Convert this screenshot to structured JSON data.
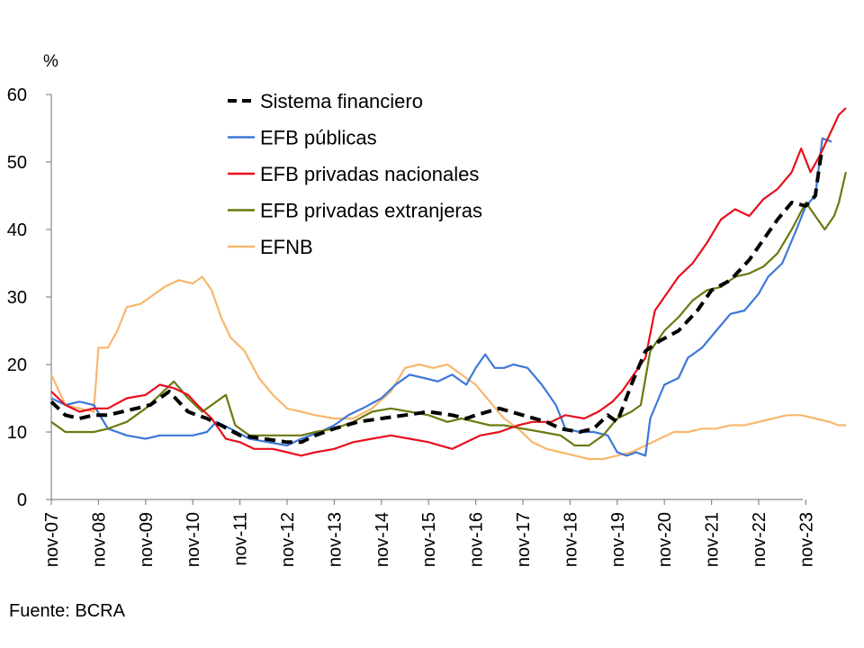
{
  "chart_data": {
    "type": "line",
    "ylabel": "%",
    "ylim": [
      0,
      60
    ],
    "yticks": [
      0,
      10,
      20,
      30,
      40,
      50,
      60
    ],
    "x_tick_labels": [
      "nov-07",
      "nov-08",
      "nov-09",
      "nov-10",
      "nov-11",
      "nov-12",
      "nov-13",
      "nov-14",
      "nov-15",
      "nov-16",
      "nov-17",
      "nov-18",
      "nov-19",
      "nov-20",
      "nov-21",
      "nov-22",
      "nov-23"
    ],
    "x_domain": [
      0,
      16.3
    ],
    "legend_position": "top-center",
    "source": "Fuente: BCRA",
    "series": [
      {
        "name": "Sistema financiero",
        "color": "#000000",
        "dashed": true,
        "points": [
          [
            0,
            14.5
          ],
          [
            0.3,
            12.5
          ],
          [
            0.6,
            12.0
          ],
          [
            0.9,
            12.5
          ],
          [
            1.2,
            12.5
          ],
          [
            1.5,
            13.0
          ],
          [
            1.8,
            13.5
          ],
          [
            2.1,
            14.0
          ],
          [
            2.3,
            15.0
          ],
          [
            2.5,
            16.0
          ],
          [
            2.7,
            14.5
          ],
          [
            2.9,
            13.0
          ],
          [
            3.1,
            12.5
          ],
          [
            3.3,
            12.0
          ],
          [
            3.6,
            11.0
          ],
          [
            4.0,
            9.5
          ],
          [
            4.5,
            9.0
          ],
          [
            5.0,
            8.5
          ],
          [
            5.3,
            8.5
          ],
          [
            5.6,
            9.5
          ],
          [
            6.0,
            10.5
          ],
          [
            6.5,
            11.5
          ],
          [
            7.0,
            12.0
          ],
          [
            7.5,
            12.5
          ],
          [
            8.0,
            13.0
          ],
          [
            8.5,
            12.5
          ],
          [
            8.8,
            12.0
          ],
          [
            9.0,
            12.5
          ],
          [
            9.5,
            13.5
          ],
          [
            10.0,
            12.5
          ],
          [
            10.5,
            11.5
          ],
          [
            10.8,
            10.5
          ],
          [
            11.2,
            10.0
          ],
          [
            11.5,
            10.5
          ],
          [
            11.8,
            12.5
          ],
          [
            12.0,
            11.5
          ],
          [
            12.3,
            17.0
          ],
          [
            12.6,
            22.0
          ],
          [
            12.9,
            23.5
          ],
          [
            13.3,
            25.0
          ],
          [
            13.7,
            28.0
          ],
          [
            14.0,
            31.0
          ],
          [
            14.4,
            32.5
          ],
          [
            14.8,
            35.5
          ],
          [
            15.1,
            38.5
          ],
          [
            15.4,
            41.5
          ],
          [
            15.7,
            44.0
          ],
          [
            16.0,
            43.5
          ],
          [
            16.2,
            45.0
          ],
          [
            16.3,
            50.0
          ],
          [
            16.35,
            52.0
          ]
        ]
      },
      {
        "name": "EFB públicas",
        "color": "#3C78D8",
        "dashed": false,
        "points": [
          [
            0,
            15.0
          ],
          [
            0.3,
            14.0
          ],
          [
            0.6,
            14.5
          ],
          [
            0.9,
            14.0
          ],
          [
            1.2,
            10.5
          ],
          [
            1.6,
            9.5
          ],
          [
            2.0,
            9.0
          ],
          [
            2.3,
            9.5
          ],
          [
            2.6,
            9.5
          ],
          [
            3.0,
            9.5
          ],
          [
            3.3,
            10.0
          ],
          [
            3.5,
            11.5
          ],
          [
            3.8,
            10.5
          ],
          [
            4.2,
            9.0
          ],
          [
            4.6,
            8.5
          ],
          [
            5.0,
            8.0
          ],
          [
            5.3,
            9.0
          ],
          [
            5.7,
            10.0
          ],
          [
            6.0,
            11.0
          ],
          [
            6.3,
            12.5
          ],
          [
            6.6,
            13.5
          ],
          [
            7.0,
            15.0
          ],
          [
            7.3,
            17.0
          ],
          [
            7.6,
            18.5
          ],
          [
            7.9,
            18.0
          ],
          [
            8.2,
            17.5
          ],
          [
            8.5,
            18.5
          ],
          [
            8.8,
            17.0
          ],
          [
            9.0,
            19.5
          ],
          [
            9.2,
            21.5
          ],
          [
            9.4,
            19.5
          ],
          [
            9.6,
            19.5
          ],
          [
            9.8,
            20.0
          ],
          [
            10.1,
            19.5
          ],
          [
            10.4,
            17.0
          ],
          [
            10.7,
            14.0
          ],
          [
            10.9,
            10.5
          ],
          [
            11.2,
            10.0
          ],
          [
            11.5,
            10.0
          ],
          [
            11.8,
            9.5
          ],
          [
            12.0,
            7.0
          ],
          [
            12.2,
            6.5
          ],
          [
            12.4,
            7.0
          ],
          [
            12.6,
            6.5
          ],
          [
            12.7,
            12.0
          ],
          [
            13.0,
            17.0
          ],
          [
            13.3,
            18.0
          ],
          [
            13.5,
            21.0
          ],
          [
            13.8,
            22.5
          ],
          [
            14.1,
            25.0
          ],
          [
            14.4,
            27.5
          ],
          [
            14.7,
            28.0
          ],
          [
            15.0,
            30.5
          ],
          [
            15.2,
            33.0
          ],
          [
            15.5,
            35.0
          ],
          [
            15.8,
            40.0
          ],
          [
            16.0,
            43.5
          ],
          [
            16.2,
            45.0
          ],
          [
            16.35,
            53.5
          ],
          [
            16.55,
            53.0
          ]
        ]
      },
      {
        "name": "EFB privadas nacionales",
        "color": "#E8101E",
        "dashed": false,
        "points": [
          [
            0,
            16.0
          ],
          [
            0.3,
            14.0
          ],
          [
            0.6,
            13.0
          ],
          [
            0.9,
            13.5
          ],
          [
            1.2,
            13.5
          ],
          [
            1.6,
            15.0
          ],
          [
            2.0,
            15.5
          ],
          [
            2.3,
            17.0
          ],
          [
            2.6,
            16.5
          ],
          [
            2.9,
            15.5
          ],
          [
            3.1,
            14.0
          ],
          [
            3.4,
            12.0
          ],
          [
            3.7,
            9.0
          ],
          [
            4.0,
            8.5
          ],
          [
            4.3,
            7.5
          ],
          [
            4.7,
            7.5
          ],
          [
            5.0,
            7.0
          ],
          [
            5.3,
            6.5
          ],
          [
            5.6,
            7.0
          ],
          [
            6.0,
            7.5
          ],
          [
            6.4,
            8.5
          ],
          [
            6.8,
            9.0
          ],
          [
            7.2,
            9.5
          ],
          [
            7.6,
            9.0
          ],
          [
            8.0,
            8.5
          ],
          [
            8.5,
            7.5
          ],
          [
            8.8,
            8.5
          ],
          [
            9.1,
            9.5
          ],
          [
            9.5,
            10.0
          ],
          [
            9.9,
            11.0
          ],
          [
            10.2,
            11.5
          ],
          [
            10.6,
            11.5
          ],
          [
            10.9,
            12.5
          ],
          [
            11.3,
            12.0
          ],
          [
            11.6,
            13.0
          ],
          [
            11.9,
            14.5
          ],
          [
            12.1,
            16.0
          ],
          [
            12.4,
            19.0
          ],
          [
            12.6,
            21.0
          ],
          [
            12.8,
            28.0
          ],
          [
            13.0,
            30.0
          ],
          [
            13.3,
            33.0
          ],
          [
            13.6,
            35.0
          ],
          [
            13.9,
            38.0
          ],
          [
            14.2,
            41.5
          ],
          [
            14.5,
            43.0
          ],
          [
            14.8,
            42.0
          ],
          [
            15.1,
            44.5
          ],
          [
            15.4,
            46.0
          ],
          [
            15.7,
            48.5
          ],
          [
            15.9,
            52.0
          ],
          [
            16.1,
            48.5
          ],
          [
            16.3,
            51.0
          ],
          [
            16.5,
            54.0
          ],
          [
            16.7,
            57.0
          ],
          [
            16.85,
            58.0
          ]
        ]
      },
      {
        "name": "EFB privadas extranjeras",
        "color": "#6B7A0F",
        "dashed": false,
        "points": [
          [
            0,
            11.5
          ],
          [
            0.3,
            10.0
          ],
          [
            0.6,
            10.0
          ],
          [
            0.9,
            10.0
          ],
          [
            1.2,
            10.5
          ],
          [
            1.6,
            11.5
          ],
          [
            2.0,
            13.5
          ],
          [
            2.3,
            15.5
          ],
          [
            2.6,
            17.5
          ],
          [
            2.9,
            15.0
          ],
          [
            3.2,
            13.0
          ],
          [
            3.5,
            14.5
          ],
          [
            3.7,
            15.5
          ],
          [
            3.9,
            11.0
          ],
          [
            4.2,
            9.5
          ],
          [
            4.6,
            9.5
          ],
          [
            5.0,
            9.5
          ],
          [
            5.3,
            9.5
          ],
          [
            5.6,
            10.0
          ],
          [
            6.0,
            10.5
          ],
          [
            6.4,
            11.5
          ],
          [
            6.8,
            13.0
          ],
          [
            7.2,
            13.5
          ],
          [
            7.6,
            13.0
          ],
          [
            8.0,
            12.5
          ],
          [
            8.4,
            11.5
          ],
          [
            8.7,
            12.0
          ],
          [
            9.0,
            11.5
          ],
          [
            9.3,
            11.0
          ],
          [
            9.6,
            11.0
          ],
          [
            10.0,
            10.5
          ],
          [
            10.4,
            10.0
          ],
          [
            10.8,
            9.5
          ],
          [
            11.1,
            8.0
          ],
          [
            11.4,
            8.0
          ],
          [
            11.7,
            9.5
          ],
          [
            12.0,
            12.0
          ],
          [
            12.3,
            13.0
          ],
          [
            12.5,
            14.0
          ],
          [
            12.7,
            22.0
          ],
          [
            13.0,
            25.0
          ],
          [
            13.3,
            27.0
          ],
          [
            13.6,
            29.5
          ],
          [
            13.9,
            31.0
          ],
          [
            14.2,
            31.5
          ],
          [
            14.5,
            33.0
          ],
          [
            14.8,
            33.5
          ],
          [
            15.1,
            34.5
          ],
          [
            15.4,
            36.5
          ],
          [
            15.7,
            40.0
          ],
          [
            16.0,
            44.0
          ],
          [
            16.2,
            42.0
          ],
          [
            16.4,
            40.0
          ],
          [
            16.6,
            42.0
          ],
          [
            16.7,
            44.0
          ],
          [
            16.85,
            48.5
          ]
        ]
      },
      {
        "name": "EFNB",
        "color": "#F8B76E",
        "dashed": false,
        "points": [
          [
            0,
            18.5
          ],
          [
            0.3,
            14.0
          ],
          [
            0.6,
            13.5
          ],
          [
            0.9,
            13.0
          ],
          [
            1.0,
            22.5
          ],
          [
            1.2,
            22.5
          ],
          [
            1.4,
            25.0
          ],
          [
            1.6,
            28.5
          ],
          [
            1.9,
            29.0
          ],
          [
            2.1,
            30.0
          ],
          [
            2.4,
            31.5
          ],
          [
            2.7,
            32.5
          ],
          [
            3.0,
            32.0
          ],
          [
            3.2,
            33.0
          ],
          [
            3.4,
            31.0
          ],
          [
            3.6,
            27.0
          ],
          [
            3.8,
            24.0
          ],
          [
            4.1,
            22.0
          ],
          [
            4.4,
            18.0
          ],
          [
            4.7,
            15.5
          ],
          [
            5.0,
            13.5
          ],
          [
            5.3,
            13.0
          ],
          [
            5.6,
            12.5
          ],
          [
            6.0,
            12.0
          ],
          [
            6.4,
            12.0
          ],
          [
            6.8,
            13.5
          ],
          [
            7.2,
            16.0
          ],
          [
            7.5,
            19.5
          ],
          [
            7.8,
            20.0
          ],
          [
            8.1,
            19.5
          ],
          [
            8.4,
            20.0
          ],
          [
            8.7,
            18.5
          ],
          [
            9.0,
            17.0
          ],
          [
            9.3,
            14.5
          ],
          [
            9.6,
            12.0
          ],
          [
            9.9,
            10.5
          ],
          [
            10.2,
            8.5
          ],
          [
            10.5,
            7.5
          ],
          [
            10.8,
            7.0
          ],
          [
            11.1,
            6.5
          ],
          [
            11.4,
            6.0
          ],
          [
            11.7,
            6.0
          ],
          [
            12.0,
            6.5
          ],
          [
            12.3,
            7.0
          ],
          [
            12.6,
            8.0
          ],
          [
            12.9,
            9.0
          ],
          [
            13.2,
            10.0
          ],
          [
            13.5,
            10.0
          ],
          [
            13.8,
            10.5
          ],
          [
            14.1,
            10.5
          ],
          [
            14.4,
            11.0
          ],
          [
            14.7,
            11.0
          ],
          [
            15.0,
            11.5
          ],
          [
            15.3,
            12.0
          ],
          [
            15.6,
            12.5
          ],
          [
            15.9,
            12.5
          ],
          [
            16.2,
            12.0
          ],
          [
            16.5,
            11.5
          ],
          [
            16.7,
            11.0
          ],
          [
            16.85,
            11.0
          ]
        ]
      }
    ]
  }
}
